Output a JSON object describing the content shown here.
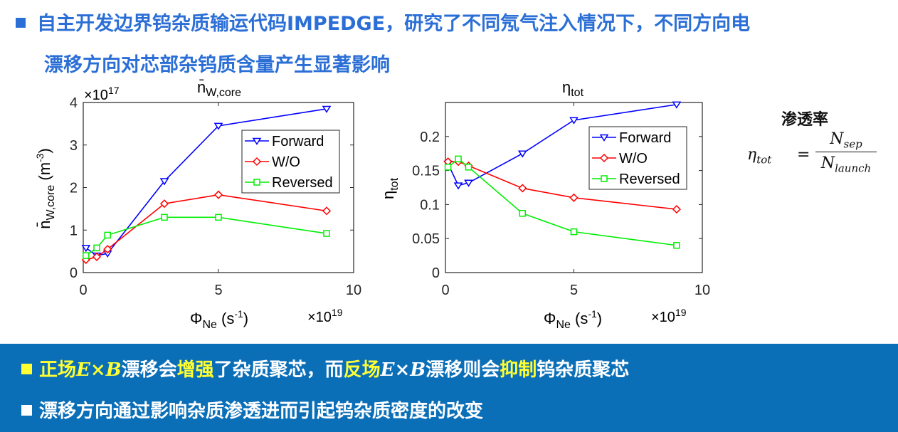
{
  "heading": {
    "line1": "自主开发边界钨杂质输运代码IMPEDGE，研究了不同氖气注入情况下，不同方向电",
    "line2": "漂移方向对芯部杂钨质含量产生显著影响"
  },
  "chart_data": [
    {
      "type": "line",
      "title": "n̄W,core",
      "title_main": "n̄",
      "title_sub": "W,core",
      "xlabel": "ΦNe (s-1)",
      "xlabel_main": "Φ",
      "xlabel_sub": "Ne",
      "xlabel_unit": " (s",
      "xlabel_sup": "-1",
      "xlabel_close": ")",
      "x_multiplier": "×10",
      "x_multiplier_exp": "19",
      "ylabel": "n̄W,core (m-3)",
      "ylabel_main": "n̄",
      "ylabel_sub": "W,core",
      "ylabel_unit": " (m",
      "ylabel_sup": "-3",
      "ylabel_close": ")",
      "y_multiplier": "×10",
      "y_multiplier_exp": "17",
      "xlim": [
        0,
        10
      ],
      "ylim": [
        0,
        4
      ],
      "xticks": [
        "0",
        "5",
        "10"
      ],
      "yticks": [
        "0",
        "1",
        "2",
        "3",
        "4"
      ],
      "legend_position": "top-right",
      "series": [
        {
          "name": "Forward",
          "color": "#0000ff",
          "marker": "triangle-down",
          "x": [
            0.1,
            0.5,
            0.9,
            3,
            5,
            9
          ],
          "y": [
            0.58,
            0.4,
            0.45,
            2.15,
            3.45,
            3.85
          ]
        },
        {
          "name": "W/O",
          "color": "#ff0000",
          "marker": "diamond",
          "x": [
            0.1,
            0.5,
            0.9,
            3,
            5,
            9
          ],
          "y": [
            0.3,
            0.37,
            0.55,
            1.62,
            1.83,
            1.45
          ]
        },
        {
          "name": "Reversed",
          "color": "#00ee00",
          "marker": "square",
          "x": [
            0.1,
            0.5,
            0.9,
            3,
            5,
            9
          ],
          "y": [
            0.4,
            0.58,
            0.88,
            1.3,
            1.3,
            0.92
          ]
        }
      ]
    },
    {
      "type": "line",
      "title": "ηtot",
      "title_main": "η",
      "title_sub": "tot",
      "xlabel": "ΦNe (s-1)",
      "xlabel_main": "Φ",
      "xlabel_sub": "Ne",
      "xlabel_unit": " (s",
      "xlabel_sup": "-1",
      "xlabel_close": ")",
      "x_multiplier": "×10",
      "x_multiplier_exp": "19",
      "ylabel": "ηtot",
      "ylabel_main": "η",
      "ylabel_sub": "tot",
      "xlim": [
        0,
        10
      ],
      "ylim": [
        0,
        0.25
      ],
      "xticks": [
        "0",
        "5",
        "10"
      ],
      "yticks": [
        "0",
        "0.05",
        "0.1",
        "0.15",
        "0.2"
      ],
      "legend_position": "top-right",
      "series": [
        {
          "name": "Forward",
          "color": "#0000ff",
          "marker": "triangle-down",
          "x": [
            0.1,
            0.5,
            0.9,
            3,
            5,
            9
          ],
          "y": [
            0.16,
            0.128,
            0.132,
            0.175,
            0.224,
            0.247
          ]
        },
        {
          "name": "W/O",
          "color": "#ff0000",
          "marker": "diamond",
          "x": [
            0.1,
            0.5,
            0.9,
            3,
            5,
            9
          ],
          "y": [
            0.163,
            0.163,
            0.157,
            0.124,
            0.11,
            0.093
          ]
        },
        {
          "name": "Reversed",
          "color": "#00ee00",
          "marker": "square",
          "x": [
            0.1,
            0.5,
            0.9,
            3,
            5,
            9
          ],
          "y": [
            0.155,
            0.167,
            0.155,
            0.087,
            0.06,
            0.04
          ]
        }
      ]
    }
  ],
  "formula": {
    "title": "渗透率",
    "lhs_main": "η",
    "lhs_sub": "tot",
    "equals": "=",
    "num_main": "N",
    "num_sub": "sep",
    "den_main": "N",
    "den_sub": "launch"
  },
  "banner": {
    "row1": {
      "t1": "正场",
      "math1": "E×B",
      "t2": "漂移会",
      "t3": "增强",
      "t4": "了杂质聚芯，而",
      "t5": "反场",
      "math2": "E×B",
      "t6": "漂移则会",
      "t7": "抑制",
      "t8": "钨杂质聚芯"
    },
    "row2": "漂移方向通过影响杂质渗透进而引起钨杂质密度的改变"
  },
  "colors": {
    "heading": "#2b6fd6",
    "banner_bg": "#0b6fb8",
    "highlight": "#ffff33"
  }
}
